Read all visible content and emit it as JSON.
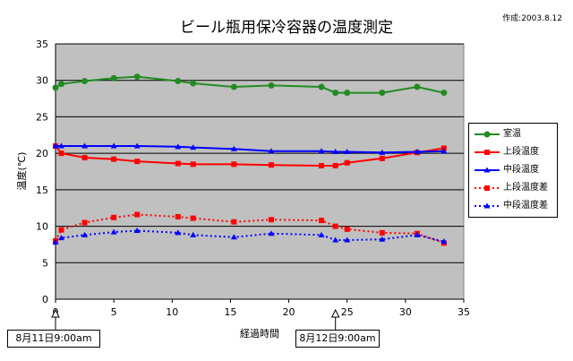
{
  "chart_data": {
    "type": "line",
    "title": "ビール瓶用保冷容器の温度測定",
    "note": "作成:2003.8.12",
    "xlabel": "経過時間",
    "ylabel": "温度(℃)",
    "xlim": [
      0,
      35
    ],
    "ylim": [
      0,
      35
    ],
    "x_ticks": [
      "0",
      "5",
      "10",
      "15",
      "20",
      "25",
      "30",
      "35"
    ],
    "y_ticks": [
      "0",
      "5",
      "10",
      "15",
      "20",
      "25",
      "30",
      "35"
    ],
    "grid": true,
    "plot_background": "#c0c0c0",
    "legend_position": "right",
    "series": [
      {
        "name": "室温",
        "color": "#228B22",
        "marker": "circle",
        "line": "solid",
        "x": [
          0,
          0.5,
          2.5,
          5,
          7,
          10.5,
          11.8,
          15.3,
          18.5,
          22.8,
          24,
          25,
          28,
          31,
          33.3
        ],
        "y": [
          29.0,
          29.5,
          29.9,
          30.3,
          30.5,
          29.9,
          29.6,
          29.1,
          29.3,
          29.1,
          28.3,
          28.3,
          28.3,
          29.1,
          28.3
        ]
      },
      {
        "name": "上段温度",
        "color": "#FF0000",
        "marker": "square",
        "line": "solid",
        "x": [
          0,
          0.5,
          2.5,
          5,
          7,
          10.5,
          11.8,
          15.3,
          18.5,
          22.8,
          24,
          25,
          28,
          31,
          33.3
        ],
        "y": [
          21.0,
          20.0,
          19.4,
          19.2,
          18.9,
          18.6,
          18.5,
          18.5,
          18.4,
          18.3,
          18.3,
          18.7,
          19.3,
          20.1,
          20.7
        ]
      },
      {
        "name": "中段温度",
        "color": "#0000FF",
        "marker": "triangle",
        "line": "solid",
        "x": [
          0,
          0.5,
          2.5,
          5,
          7,
          10.5,
          11.8,
          15.3,
          18.5,
          22.8,
          24,
          25,
          28,
          31,
          33.3
        ],
        "y": [
          21.0,
          21.0,
          21.0,
          21.0,
          21.0,
          20.9,
          20.8,
          20.6,
          20.3,
          20.3,
          20.2,
          20.2,
          20.1,
          20.2,
          20.3
        ]
      },
      {
        "name": "上段温度差",
        "color": "#FF0000",
        "marker": "square",
        "line": "dotted",
        "x": [
          0,
          0.5,
          2.5,
          5,
          7,
          10.5,
          11.8,
          15.3,
          18.5,
          22.8,
          24,
          25,
          28,
          31,
          33.3
        ],
        "y": [
          8.0,
          9.5,
          10.5,
          11.2,
          11.6,
          11.3,
          11.1,
          10.6,
          10.9,
          10.8,
          10.0,
          9.6,
          9.1,
          9.0,
          7.7
        ]
      },
      {
        "name": "中段温度差",
        "color": "#0000FF",
        "marker": "triangle",
        "line": "dotted",
        "x": [
          0,
          0.5,
          2.5,
          5,
          7,
          10.5,
          11.8,
          15.3,
          18.5,
          22.8,
          24,
          25,
          28,
          31,
          33.3
        ],
        "y": [
          7.8,
          8.4,
          8.8,
          9.2,
          9.4,
          9.1,
          8.8,
          8.5,
          9.0,
          8.8,
          8.1,
          8.1,
          8.2,
          8.8,
          7.9
        ]
      }
    ],
    "annotations": [
      {
        "text": "8月11日9:00am",
        "x": 0
      },
      {
        "text": "8月12日9:00am",
        "x": 24
      }
    ]
  }
}
